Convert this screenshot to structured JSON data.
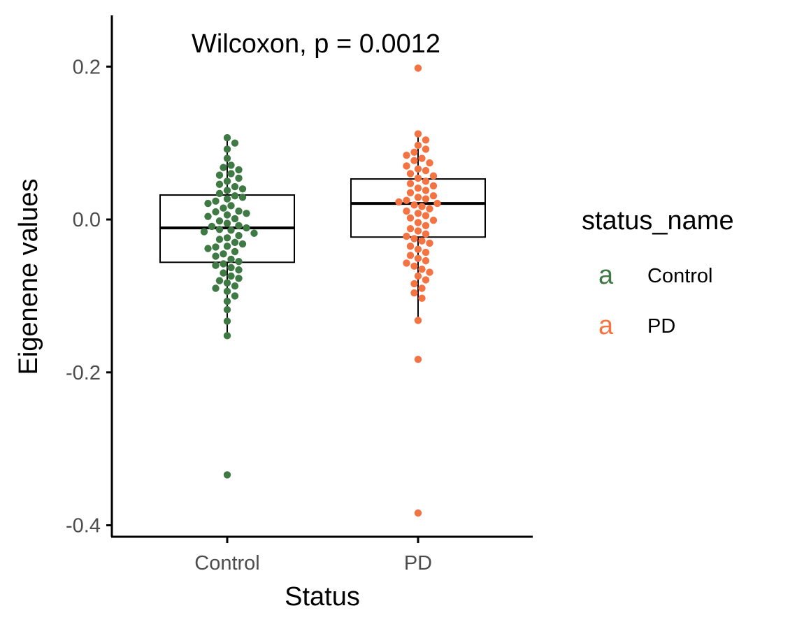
{
  "chart_data": {
    "type": "box",
    "title": "",
    "annotation": "Wilcoxon, p = 0.0012",
    "xlabel": "Status",
    "ylabel": "Eigenene values",
    "categories": [
      "Control",
      "PD"
    ],
    "yticks": [
      {
        "value": 0.2,
        "label": "0.2"
      },
      {
        "value": 0.0,
        "label": "0.0"
      },
      {
        "value": -0.2,
        "label": "-0.2"
      },
      {
        "value": -0.4,
        "label": "-0.4"
      }
    ],
    "ylim": [
      -0.415,
      0.267
    ],
    "grid": false,
    "legend": {
      "title": "status_name",
      "placement": "right",
      "key_glyph": "a",
      "entries": [
        {
          "label": "Control",
          "color": "#3f7a45"
        },
        {
          "label": "PD",
          "color": "#f47342"
        }
      ]
    },
    "boxes": [
      {
        "category": "Control",
        "q1": -0.056,
        "median": -0.011,
        "q3": 0.032,
        "whisker_low": -0.152,
        "whisker_high": 0.107
      },
      {
        "category": "PD",
        "q1": -0.023,
        "median": 0.021,
        "q3": 0.053,
        "whisker_low": -0.132,
        "whisker_high": 0.112
      }
    ],
    "series": [
      {
        "name": "Control",
        "color": "#3f7a45",
        "values": [
          0.107,
          0.1,
          0.092,
          0.08,
          0.071,
          0.068,
          0.065,
          0.06,
          0.058,
          0.054,
          0.05,
          0.046,
          0.043,
          0.04,
          0.038,
          0.034,
          0.031,
          0.029,
          0.027,
          0.024,
          0.021,
          0.018,
          0.015,
          0.011,
          0.01,
          0.008,
          0.006,
          0.004,
          0.001,
          -0.002,
          -0.005,
          -0.008,
          -0.009,
          -0.011,
          -0.013,
          -0.014,
          -0.016,
          -0.018,
          -0.021,
          -0.024,
          -0.026,
          -0.03,
          -0.032,
          -0.035,
          -0.036,
          -0.038,
          -0.042,
          -0.045,
          -0.048,
          -0.052,
          -0.055,
          -0.058,
          -0.06,
          -0.063,
          -0.066,
          -0.07,
          -0.074,
          -0.077,
          -0.08,
          -0.083,
          -0.087,
          -0.09,
          -0.094,
          -0.1,
          -0.107,
          -0.118,
          -0.133,
          -0.152,
          -0.334
        ]
      },
      {
        "name": "PD",
        "color": "#f47342",
        "values": [
          0.198,
          0.112,
          0.104,
          0.097,
          0.092,
          0.088,
          0.084,
          0.08,
          0.077,
          0.074,
          0.07,
          0.066,
          0.064,
          0.06,
          0.057,
          0.054,
          0.05,
          0.047,
          0.044,
          0.041,
          0.038,
          0.035,
          0.031,
          0.029,
          0.027,
          0.025,
          0.023,
          0.021,
          0.019,
          0.017,
          0.014,
          0.011,
          0.008,
          0.005,
          0.002,
          -0.001,
          -0.004,
          -0.008,
          -0.012,
          -0.015,
          -0.019,
          -0.022,
          -0.025,
          -0.028,
          -0.031,
          -0.035,
          -0.039,
          -0.043,
          -0.047,
          -0.051,
          -0.054,
          -0.057,
          -0.061,
          -0.065,
          -0.069,
          -0.074,
          -0.079,
          -0.084,
          -0.09,
          -0.096,
          -0.103,
          -0.132,
          -0.183,
          -0.384
        ]
      }
    ]
  }
}
